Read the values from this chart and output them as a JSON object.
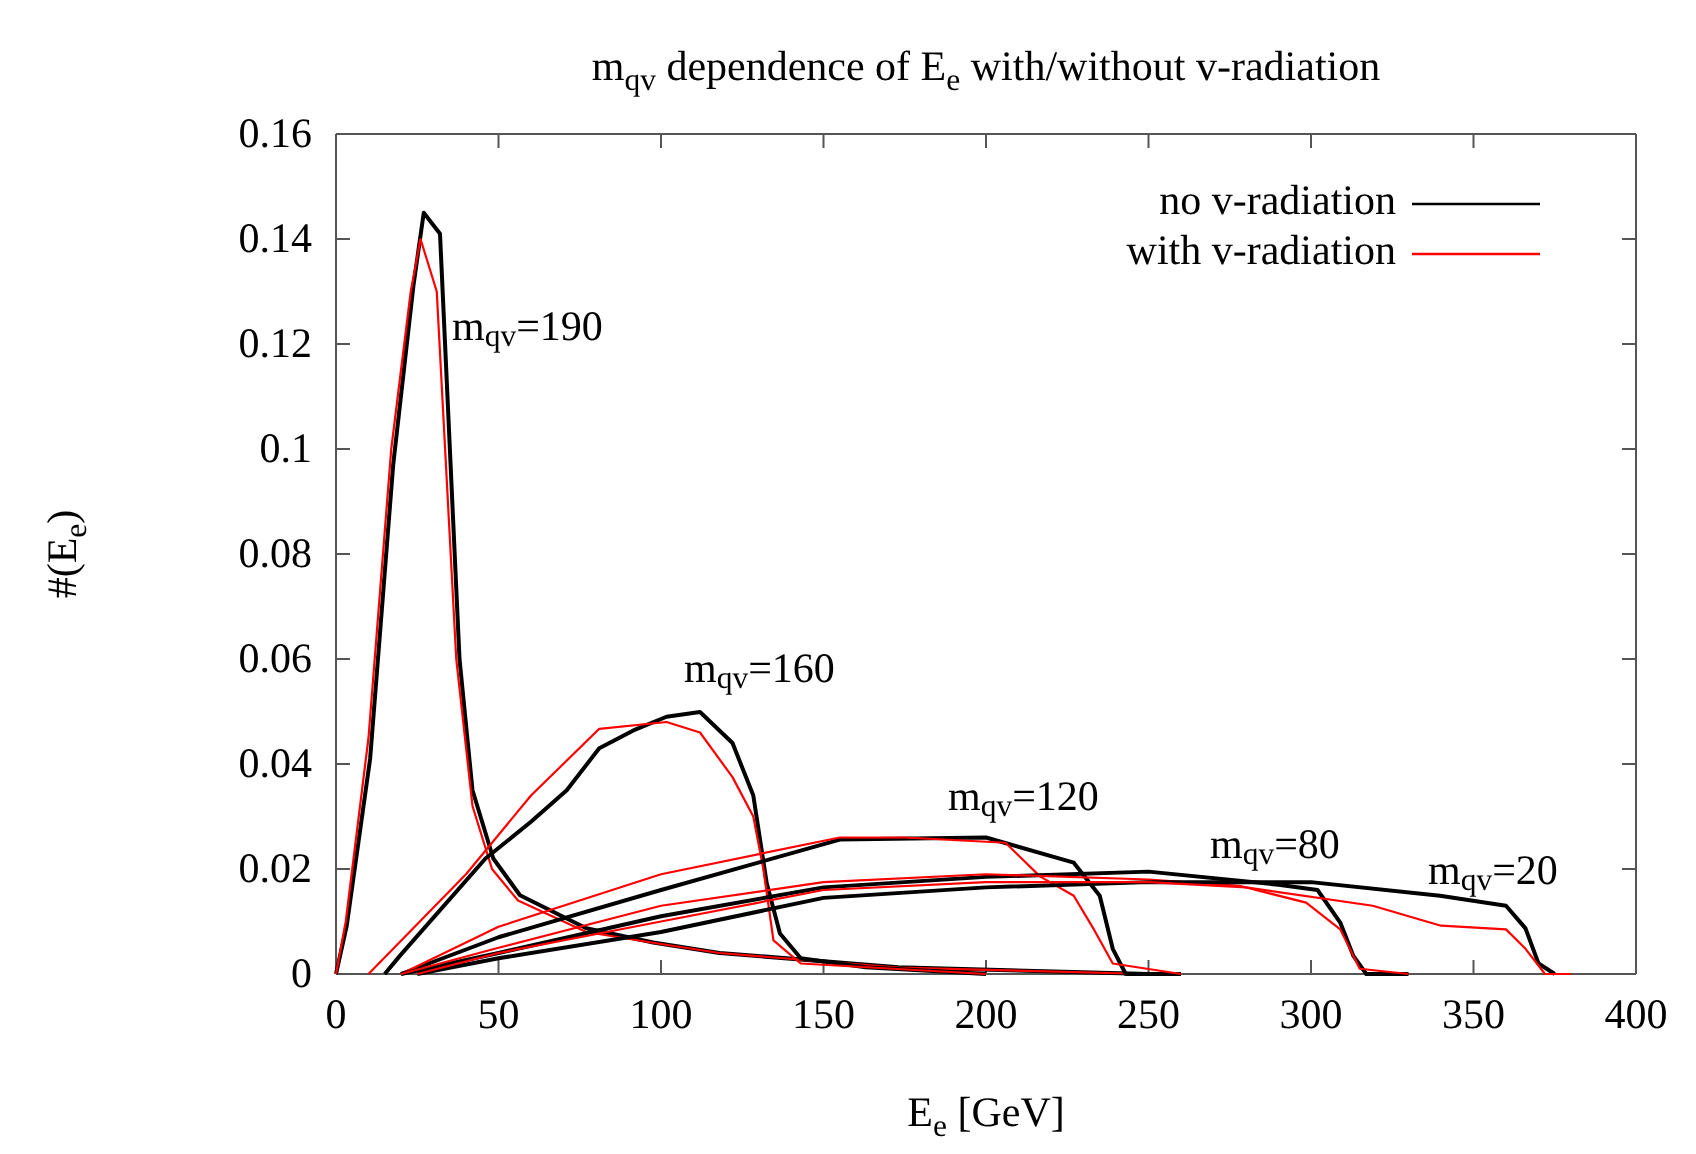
{
  "chart_data": {
    "type": "line",
    "title": "m$_{qv}$ dependence of E$_{e}$  with/without v-radiation",
    "xlabel": "E$_{e}$ [GeV]",
    "ylabel": "#(E$_{e}$)",
    "xlim": [
      0,
      400
    ],
    "xticks": [
      0,
      50,
      100,
      150,
      200,
      250,
      300,
      350,
      400
    ],
    "ylim": [
      0,
      0.16
    ],
    "yticks": [
      0,
      0.02,
      0.04,
      0.06,
      0.08,
      0.1,
      0.12,
      0.14,
      0.16
    ],
    "grid": false,
    "legend": "top right",
    "line_style": "solid",
    "marker": "none",
    "series": [
      {
        "name": "no v-radiation",
        "color": "#000000",
        "x": [
          0,
          3.3,
          10.5,
          17.6,
          23.8,
          27,
          32,
          38,
          42,
          48.4,
          56.6,
          77,
          97.6,
          118,
          173,
          250
        ],
        "values": [
          0,
          0.0092,
          0.041,
          0.097,
          0.131,
          0.145,
          0.141,
          0.06,
          0.035,
          0.022,
          0.015,
          0.0087,
          0.006,
          0.004,
          0.0013,
          0
        ]
      },
      {
        "name": "with v-radiation",
        "color": "#ff0000",
        "x": [
          0,
          3,
          10,
          17,
          23,
          26,
          31,
          37,
          42,
          48,
          56,
          77,
          97,
          118,
          173,
          250
        ],
        "values": [
          0,
          0.01,
          0.045,
          0.1,
          0.13,
          0.14,
          0.13,
          0.06,
          0.032,
          0.02,
          0.014,
          0.008,
          0.006,
          0.004,
          0.0012,
          0
        ]
      },
      {
        "color": "#000000",
        "x": [
          15,
          19.7,
          46,
          60,
          71,
          81,
          91.5,
          101.7,
          112,
          122,
          128.4,
          132.5,
          136.6,
          143,
          163,
          200
        ],
        "values": [
          0,
          0.0035,
          0.022,
          0.029,
          0.035,
          0.043,
          0.0464,
          0.049,
          0.0499,
          0.044,
          0.034,
          0.0174,
          0.0077,
          0.003,
          0.0013,
          0
        ]
      },
      {
        "color": "#ff0000",
        "x": [
          10,
          40,
          60,
          81,
          101.7,
          112,
          122,
          128.4,
          131.5,
          134.6,
          143,
          200
        ],
        "values": [
          0,
          0.019,
          0.034,
          0.0467,
          0.048,
          0.046,
          0.0375,
          0.03,
          0.02,
          0.0064,
          0.002,
          0
        ]
      },
      {
        "color": "#000000",
        "x": [
          20,
          50,
          100,
          155,
          200,
          227,
          235,
          239,
          243,
          260
        ],
        "values": [
          0,
          0.007,
          0.016,
          0.0256,
          0.026,
          0.0212,
          0.0149,
          0.0048,
          0,
          0
        ]
      },
      {
        "color": "#ff0000",
        "x": [
          20,
          50,
          100,
          155,
          175,
          206,
          216.6,
          227,
          233,
          239,
          260
        ],
        "values": [
          0,
          0.009,
          0.019,
          0.026,
          0.026,
          0.025,
          0.0186,
          0.0149,
          0.0087,
          0.002,
          0
        ]
      },
      {
        "color": "#000000",
        "x": [
          20,
          50,
          100,
          150,
          200,
          250,
          290,
          302,
          309,
          313,
          317,
          330
        ],
        "values": [
          0,
          0.004,
          0.011,
          0.0165,
          0.0185,
          0.0195,
          0.017,
          0.016,
          0.0098,
          0.0035,
          0,
          0
        ]
      },
      {
        "color": "#ff0000",
        "x": [
          20,
          50,
          100,
          150,
          200,
          250,
          278,
          298.5,
          309,
          315,
          330
        ],
        "values": [
          0,
          0.005,
          0.013,
          0.0175,
          0.019,
          0.018,
          0.0168,
          0.0136,
          0.0085,
          0.001,
          0
        ]
      },
      {
        "color": "#000000",
        "x": [
          25,
          50,
          100,
          150,
          200,
          250,
          300,
          339.7,
          360,
          366,
          370,
          375
        ],
        "values": [
          0,
          0.003,
          0.008,
          0.0145,
          0.0165,
          0.0175,
          0.0175,
          0.0149,
          0.013,
          0.0087,
          0.002,
          0
        ]
      },
      {
        "color": "#ff0000",
        "x": [
          25,
          50,
          100,
          150,
          200,
          250,
          280,
          319,
          340,
          360,
          366,
          372,
          380
        ],
        "values": [
          0,
          0.004,
          0.01,
          0.016,
          0.0175,
          0.0175,
          0.0165,
          0.013,
          0.0092,
          0.0085,
          0.0048,
          0,
          0
        ]
      }
    ],
    "annotations": [
      "m$_{qv}$=190",
      "m$_{qv}$=160",
      "m$_{qv}$=120",
      "m$_{qv}$=80",
      "m$_{qv}$=20"
    ]
  }
}
